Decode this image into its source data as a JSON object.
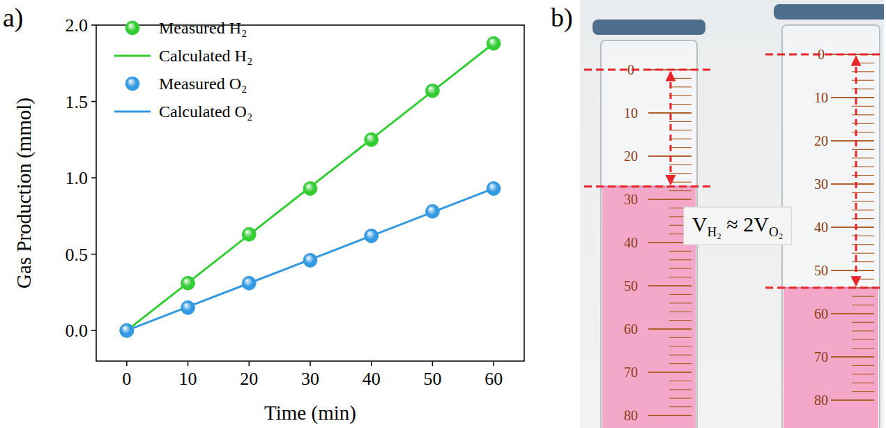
{
  "chart_data": {
    "type": "line",
    "panel_label": "a)",
    "x_label": "Time (min)",
    "y_label": "Gas Production (mmol)",
    "x": [
      0,
      10,
      20,
      30,
      40,
      50,
      60
    ],
    "xlim": [
      -5,
      65
    ],
    "xticks": [
      0,
      10,
      20,
      30,
      40,
      50,
      60
    ],
    "ylim": [
      -0.2,
      2.0
    ],
    "yticks": [
      {
        "value": 0,
        "label": "0.0"
      },
      {
        "value": 0.5,
        "label": "0.5"
      },
      {
        "value": 1,
        "label": "1.0"
      },
      {
        "value": 1.5,
        "label": "1.5"
      },
      {
        "value": 2,
        "label": "2.0"
      }
    ],
    "legend": "upper left",
    "grid": false,
    "series": [
      {
        "name": "Measured H₂",
        "type": "scatter",
        "marker": "sphere",
        "color": "#33cc33",
        "values": [
          0,
          0.31,
          0.63,
          0.93,
          1.25,
          1.57,
          1.88
        ]
      },
      {
        "name": "Calculated H₂",
        "type": "line",
        "line_style": "solid",
        "color": "#33cc33",
        "values": [
          0,
          0.313,
          0.627,
          0.94,
          1.253,
          1.567,
          1.88
        ]
      },
      {
        "name": "Measured O₂",
        "type": "scatter",
        "marker": "sphere",
        "color": "#3399e0",
        "values": [
          0,
          0.15,
          0.31,
          0.46,
          0.62,
          0.78,
          0.93
        ]
      },
      {
        "name": "Calculated O₂",
        "type": "line",
        "line_style": "solid",
        "color": "#3399e0",
        "values": [
          0,
          0.155,
          0.31,
          0.465,
          0.62,
          0.775,
          0.93
        ]
      }
    ]
  },
  "photo": {
    "panel_label": "b)",
    "annotation": [
      {
        "text": "V"
      },
      {
        "text": "H₂",
        "sub": true
      },
      {
        "text": " ≈ 2V"
      },
      {
        "text": "O₂",
        "sub": true
      }
    ],
    "cylinders": [
      {
        "graduations": [
          0,
          10,
          20,
          30,
          40,
          50,
          60,
          70,
          80
        ],
        "level": 27
      },
      {
        "graduations": [
          0,
          10,
          20,
          30,
          40,
          50,
          60,
          70,
          80
        ],
        "level": 54
      }
    ]
  }
}
